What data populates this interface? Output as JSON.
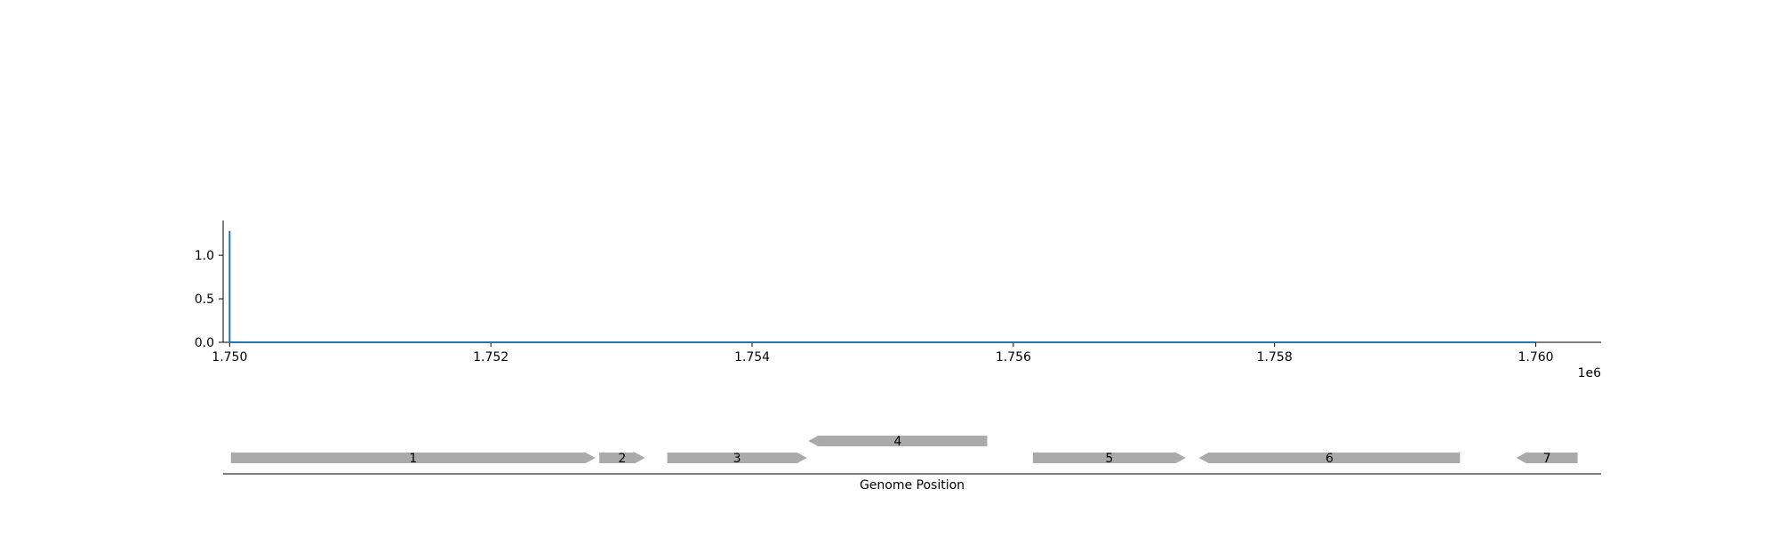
{
  "chart_data": [
    {
      "type": "line",
      "title": "",
      "xlabel": "",
      "ylabel": "",
      "x_offset_label": "1e6",
      "xlim": [
        1749950,
        1760500
      ],
      "ylim": [
        0,
        1.4
      ],
      "xticks": [
        1750000,
        1752000,
        1754000,
        1756000,
        1758000,
        1760000
      ],
      "xtick_labels": [
        "1.750",
        "1.752",
        "1.754",
        "1.756",
        "1.758",
        "1.760"
      ],
      "yticks": [
        0.0,
        0.5,
        1.0
      ],
      "ytick_labels": [
        "0.0",
        "0.5",
        "1.0"
      ],
      "grid": false,
      "color": "#1f77b4",
      "series": [
        {
          "x": [
            1750000,
            1750000,
            1750001,
            1760000
          ],
          "y": [
            1.28,
            0,
            0,
            0
          ]
        }
      ]
    },
    {
      "type": "gene_track",
      "xlabel": "Genome Position",
      "xlim": [
        1749950,
        1760500
      ],
      "color": "#aaaaaa",
      "genes": [
        {
          "label": "1",
          "start": 1750010,
          "end": 1752800,
          "strand": "+",
          "lane": 0
        },
        {
          "label": "2",
          "start": 1752830,
          "end": 1753180,
          "strand": "+",
          "lane": 0
        },
        {
          "label": "3",
          "start": 1753350,
          "end": 1754420,
          "strand": "+",
          "lane": 0
        },
        {
          "label": "4",
          "start": 1754430,
          "end": 1755800,
          "strand": "-",
          "lane": 1
        },
        {
          "label": "5",
          "start": 1756150,
          "end": 1757320,
          "strand": "+",
          "lane": 0
        },
        {
          "label": "6",
          "start": 1757420,
          "end": 1759420,
          "strand": "-",
          "lane": 0
        },
        {
          "label": "7",
          "start": 1759850,
          "end": 1760320,
          "strand": "-",
          "lane": 0
        }
      ]
    }
  ]
}
